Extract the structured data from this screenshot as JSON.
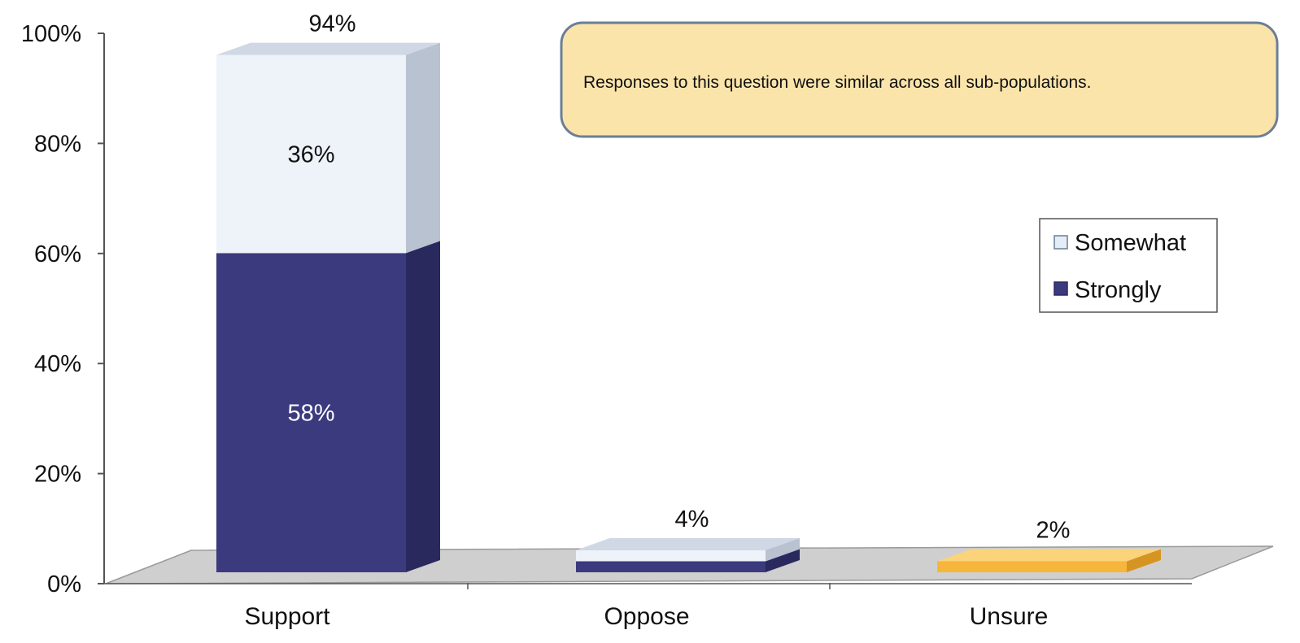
{
  "chart_data": {
    "type": "bar",
    "stacked": true,
    "three_d": true,
    "categories": [
      "Support",
      "Oppose",
      "Unsure"
    ],
    "series": [
      {
        "name": "Strongly",
        "values": [
          58,
          2,
          null
        ]
      },
      {
        "name": "Somewhat",
        "values": [
          36,
          2,
          null
        ]
      },
      {
        "name": "",
        "values": [
          null,
          null,
          2
        ]
      }
    ],
    "totals": [
      94,
      4,
      2
    ],
    "total_labels": [
      "94%",
      "4%",
      "2%"
    ],
    "segment_labels": [
      {
        "category": "Support",
        "series": "Somewhat",
        "text": "36%"
      },
      {
        "category": "Support",
        "series": "Strongly",
        "text": "58%"
      }
    ],
    "y_ticks": [
      "0%",
      "20%",
      "40%",
      "60%",
      "80%",
      "100%"
    ],
    "ylim": [
      0,
      100
    ],
    "grid": false,
    "legend": {
      "position": "right",
      "entries": [
        {
          "label": "Somewhat",
          "color": "#e4ecf6"
        },
        {
          "label": "Strongly",
          "color": "#3b3a7e"
        }
      ]
    },
    "colors": {
      "strongly_front": "#3b3a7e",
      "strongly_side": "#2a295e",
      "strongly_top": "#55549a",
      "somewhat_front": "#eef3fa",
      "somewhat_side": "#b8c2d0",
      "somewhat_top": "#cfd8e4",
      "unsure_front": "#f6b63c",
      "unsure_top": "#fbd37a",
      "unsure_side": "#d69522",
      "floor": "#cfcfcf",
      "annotation_fill": "#fbe4aa",
      "annotation_border": "#6a7f96"
    },
    "annotation": "Responses to this question were similar across all sub-populations."
  }
}
